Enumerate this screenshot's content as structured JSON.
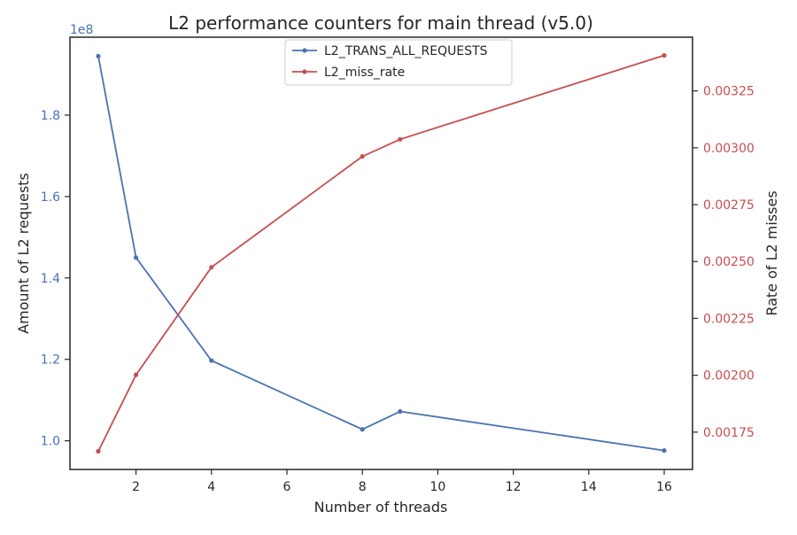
{
  "chart_data": {
    "type": "line",
    "title": "L2 performance counters for main thread (v5.0)",
    "xlabel": "Number of threads",
    "ylabel_left": "Amount of L2 requests",
    "ylabel_right": "Rate of L2 misses",
    "left_offset_label": "1e8",
    "x": [
      1,
      2,
      4,
      8,
      9,
      16
    ],
    "xlim": [
      0.25,
      16.75
    ],
    "xticks": [
      2,
      4,
      6,
      8,
      10,
      12,
      14,
      16
    ],
    "xtick_labels": [
      "2",
      "4",
      "6",
      "8",
      "10",
      "12",
      "14",
      "16"
    ],
    "ylim_left": [
      0.9295,
      1.9915
    ],
    "yticks_left": [
      1.0,
      1.2,
      1.4,
      1.6,
      1.8
    ],
    "ytick_labels_left": [
      "1.0",
      "1.2",
      "1.4",
      "1.6",
      "1.8"
    ],
    "ylim_right": [
      0.001586,
      0.003486
    ],
    "yticks_right": [
      0.00175,
      0.002,
      0.00225,
      0.0025,
      0.00275,
      0.003,
      0.00325
    ],
    "ytick_labels_right": [
      "0.00175",
      "0.00200",
      "0.00225",
      "0.00250",
      "0.00275",
      "0.00300",
      "0.00325"
    ],
    "series": [
      {
        "name": "L2_TRANS_ALL_REQUESTS",
        "axis": "left",
        "color": "#4c72b0",
        "values": [
          1.945,
          1.45,
          1.197,
          1.028,
          1.072,
          0.976
        ]
      },
      {
        "name": "L2_miss_rate",
        "axis": "right",
        "color": "#c44e52",
        "values": [
          0.001666,
          0.002002,
          0.002475,
          0.002962,
          0.003037,
          0.003406
        ]
      }
    ],
    "legend_position": "upper center",
    "grid": false
  }
}
